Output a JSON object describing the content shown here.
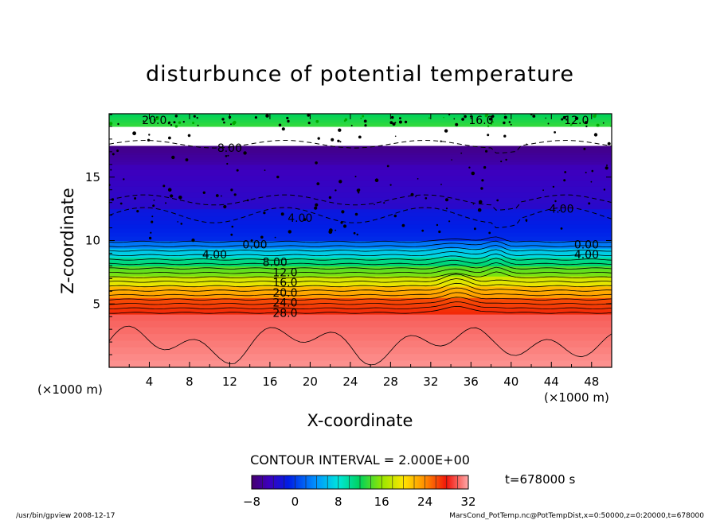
{
  "chart_data": {
    "type": "heatmap",
    "title": "disturbunce of potential temperature",
    "xlabel": "X-coordinate",
    "ylabel": "Z-coordinate",
    "x_unit_left": "(×1000 m)",
    "x_unit_right": "(×1000 m)",
    "xlim": [
      0,
      50
    ],
    "ylim": [
      0,
      20
    ],
    "x_ticks": [
      "4",
      "8",
      "12",
      "16",
      "20",
      "24",
      "28",
      "32",
      "36",
      "40",
      "44",
      "48"
    ],
    "y_ticks": [
      "5",
      "10",
      "15"
    ],
    "contour_interval_text": "CONTOUR INTERVAL = 2.000E+00",
    "time_text": "t=678000 s",
    "colorbar": {
      "min": -8,
      "max": 32,
      "tick_labels": [
        "−8",
        "0",
        "8",
        "16",
        "24",
        "32"
      ]
    },
    "layers": [
      {
        "z_bottom": 0,
        "z_top": 4.2,
        "value": 30
      },
      {
        "z_bottom": 4.2,
        "z_top": 5.5,
        "value": 26
      },
      {
        "z_bottom": 5.5,
        "z_top": 6.4,
        "value": 22
      },
      {
        "z_bottom": 6.4,
        "z_top": 7.2,
        "value": 18
      },
      {
        "z_bottom": 7.2,
        "z_top": 8.0,
        "value": 14
      },
      {
        "z_bottom": 8.0,
        "z_top": 8.7,
        "value": 10
      },
      {
        "z_bottom": 8.7,
        "z_top": 9.4,
        "value": 6
      },
      {
        "z_bottom": 9.4,
        "z_top": 10.0,
        "value": 2
      },
      {
        "z_bottom": 10.0,
        "z_top": 12.5,
        "value": -2
      },
      {
        "z_bottom": 12.5,
        "z_top": 16.0,
        "value": -5
      },
      {
        "z_bottom": 16.0,
        "z_top": 17.5,
        "value": -7
      },
      {
        "z_bottom": 17.5,
        "z_top": 19.0,
        "value": null
      },
      {
        "z_bottom": 19.0,
        "z_top": 20.0,
        "value": 12
      }
    ],
    "contour_labels": [
      {
        "text": "28.0",
        "x": 17.5,
        "y": 4.3
      },
      {
        "text": "24.0",
        "x": 17.5,
        "y": 5.1
      },
      {
        "text": "20.0",
        "x": 17.5,
        "y": 5.9
      },
      {
        "text": "16.0",
        "x": 17.5,
        "y": 6.7
      },
      {
        "text": "12.0",
        "x": 17.5,
        "y": 7.5
      },
      {
        "text": "8.00",
        "x": 16.5,
        "y": 8.3
      },
      {
        "text": "4.00",
        "x": 10.5,
        "y": 8.9
      },
      {
        "text": "0.00",
        "x": 14.5,
        "y": 9.7
      },
      {
        "text": "4.00",
        "x": 47.5,
        "y": 8.9
      },
      {
        "text": "0.00",
        "x": 47.5,
        "y": 9.7
      },
      {
        "text": "4.00",
        "x": 19.0,
        "y": 11.8
      },
      {
        "text": "4.00",
        "x": 45.0,
        "y": 12.5
      },
      {
        "text": "8.00",
        "x": 12.0,
        "y": 17.3
      },
      {
        "text": "20.0",
        "x": 4.5,
        "y": 19.5
      },
      {
        "text": "16.0",
        "x": 37.0,
        "y": 19.5
      },
      {
        "text": "12.0",
        "x": 46.5,
        "y": 19.5
      }
    ]
  },
  "footer": {
    "left": "/usr/bin/gpview  2008-12-17",
    "right": "MarsCond_PotTemp.nc@PotTempDist,x=0:50000,z=0:20000,t=678000"
  }
}
